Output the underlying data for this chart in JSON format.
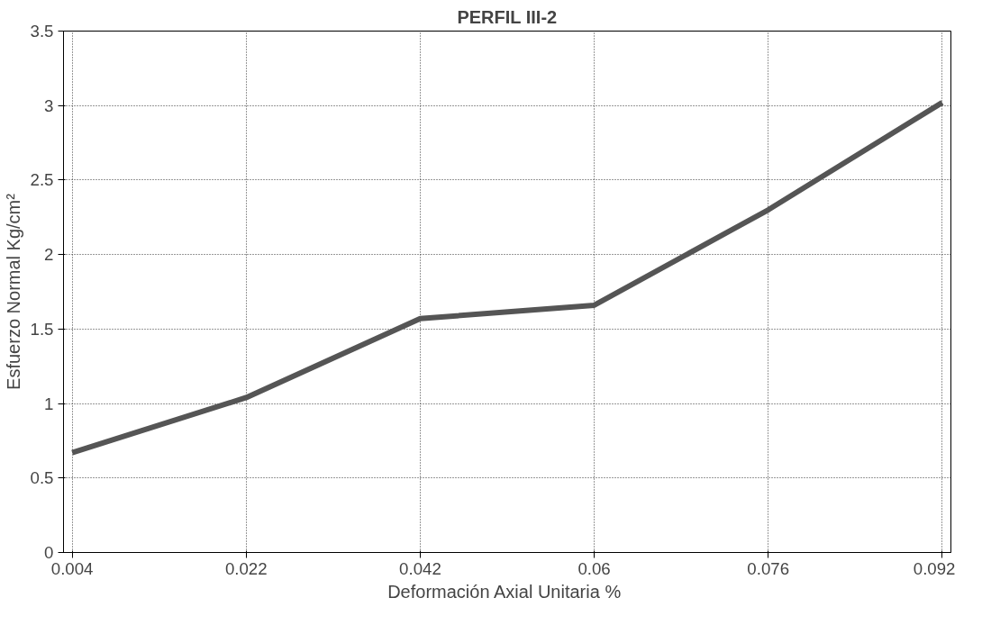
{
  "chart_data": {
    "type": "line",
    "title": "PERFIL III-2",
    "xlabel": "Deformación Axial Unitaria  %",
    "ylabel": "Esfuerzo Normal Kg/cm²",
    "categories": [
      "0.004",
      "0.022",
      "0.042",
      "0.06",
      "0.076",
      "0.092"
    ],
    "series": [
      {
        "color": "#555555",
        "values": [
          0.67,
          1.04,
          1.57,
          1.66,
          2.3,
          3.02
        ]
      }
    ],
    "ylim": [
      0,
      3.5
    ],
    "yticks": [
      0,
      0.5,
      1,
      1.5,
      2,
      2.5,
      3,
      3.5
    ],
    "grid": true,
    "marker": "none",
    "line_style": "solid"
  }
}
